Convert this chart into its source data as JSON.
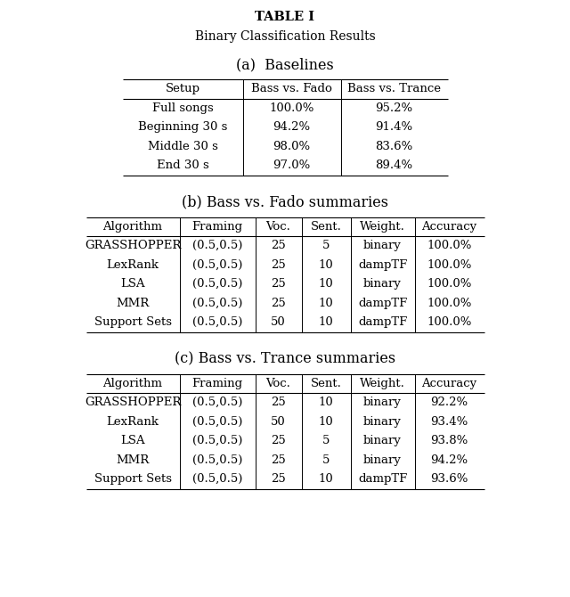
{
  "title_line1": "TABLE I",
  "title_line2": "Binary Classification Results",
  "section_a_label": "(a)  Baselines",
  "section_b_label": "(b) Bass vs. Fado summaries",
  "section_c_label": "(c) Bass vs. Trance summaries",
  "table_a": {
    "headers": [
      "Setup",
      "Bass vs. Fado",
      "Bass vs. Trance"
    ],
    "rows": [
      [
        "Full songs",
        "100.0%",
        "95.2%"
      ],
      [
        "Beginning 30 s",
        "94.2%",
        "91.4%"
      ],
      [
        "Middle 30 s",
        "98.0%",
        "83.6%"
      ],
      [
        "End 30 s",
        "97.0%",
        "89.4%"
      ]
    ]
  },
  "table_b": {
    "headers": [
      "Algorithm",
      "Framing",
      "Voc.",
      "Sent.",
      "Weight.",
      "Accuracy"
    ],
    "rows": [
      [
        "GRASSHOPPER",
        "(0.5,0.5)",
        "25",
        "5",
        "binary",
        "100.0%"
      ],
      [
        "LexRank",
        "(0.5,0.5)",
        "25",
        "10",
        "dampTF",
        "100.0%"
      ],
      [
        "LSA",
        "(0.5,0.5)",
        "25",
        "10",
        "binary",
        "100.0%"
      ],
      [
        "MMR",
        "(0.5,0.5)",
        "25",
        "10",
        "dampTF",
        "100.0%"
      ],
      [
        "Support Sets",
        "(0.5,0.5)",
        "50",
        "10",
        "dampTF",
        "100.0%"
      ]
    ]
  },
  "table_c": {
    "headers": [
      "Algorithm",
      "Framing",
      "Voc.",
      "Sent.",
      "Weight.",
      "Accuracy"
    ],
    "rows": [
      [
        "GRASSHOPPER",
        "(0.5,0.5)",
        "25",
        "10",
        "binary",
        "92.2%"
      ],
      [
        "LexRank",
        "(0.5,0.5)",
        "50",
        "10",
        "binary",
        "93.4%"
      ],
      [
        "LSA",
        "(0.5,0.5)",
        "25",
        "5",
        "binary",
        "93.8%"
      ],
      [
        "MMR",
        "(0.5,0.5)",
        "25",
        "5",
        "binary",
        "94.2%"
      ],
      [
        "Support Sets",
        "(0.5,0.5)",
        "25",
        "10",
        "dampTF",
        "93.6%"
      ]
    ]
  },
  "bg_color": "#ffffff",
  "text_color": "#000000"
}
